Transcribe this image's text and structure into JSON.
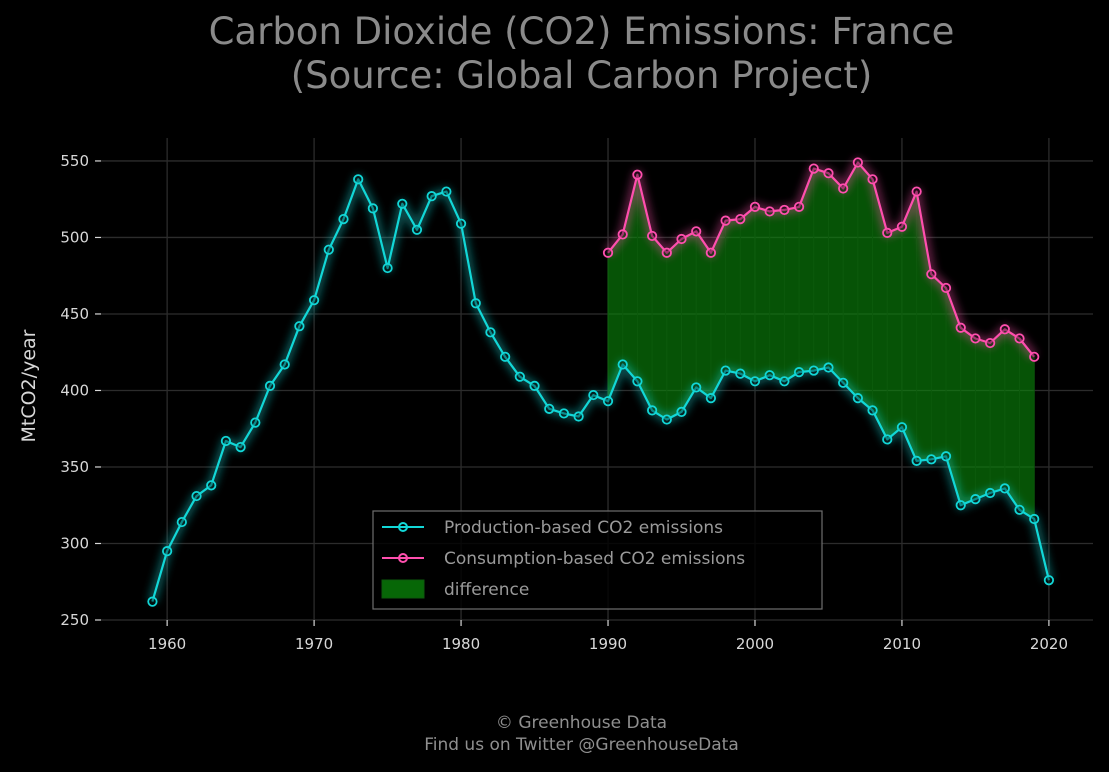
{
  "colors": {
    "background": "#000000",
    "production": "#12d7d7",
    "consumption": "#ff4fae",
    "difference": "#0a8a0a",
    "grid": "#2c2c2c",
    "text": "#d8d8d8",
    "title": "#8a8a8a"
  },
  "footer": {
    "line1": "© Greenhouse Data",
    "line2": "Find us on Twitter @GreenhouseData"
  },
  "chart_data": {
    "type": "line",
    "title": "Carbon Dioxide (CO2) Emissions: France",
    "subtitle": "(Source: Global Carbon Project)",
    "xlabel": "",
    "ylabel": "MtCO2/year",
    "xlim": [
      1955.5,
      2023
    ],
    "ylim": [
      250,
      565
    ],
    "xticks": [
      1960,
      1970,
      1980,
      1990,
      2000,
      2010,
      2020
    ],
    "yticks": [
      250,
      300,
      350,
      400,
      450,
      500,
      550
    ],
    "grid": true,
    "legend_position": "lower-center",
    "series": [
      {
        "name": "Production-based CO2 emissions",
        "color": "#12d7d7",
        "x": [
          1959,
          1960,
          1961,
          1962,
          1963,
          1964,
          1965,
          1966,
          1967,
          1968,
          1969,
          1970,
          1971,
          1972,
          1973,
          1974,
          1975,
          1976,
          1977,
          1978,
          1979,
          1980,
          1981,
          1982,
          1983,
          1984,
          1985,
          1986,
          1987,
          1988,
          1989,
          1990,
          1991,
          1992,
          1993,
          1994,
          1995,
          1996,
          1997,
          1998,
          1999,
          2000,
          2001,
          2002,
          2003,
          2004,
          2005,
          2006,
          2007,
          2008,
          2009,
          2010,
          2011,
          2012,
          2013,
          2014,
          2015,
          2016,
          2017,
          2018,
          2019,
          2020
        ],
        "values": [
          262,
          295,
          314,
          331,
          338,
          367,
          363,
          379,
          403,
          417,
          442,
          459,
          492,
          512,
          538,
          519,
          480,
          522,
          505,
          527,
          530,
          509,
          457,
          438,
          422,
          409,
          403,
          388,
          385,
          383,
          397,
          393,
          417,
          406,
          387,
          381,
          386,
          402,
          395,
          413,
          411,
          406,
          410,
          406,
          412,
          413,
          415,
          405,
          395,
          387,
          368,
          376,
          354,
          355,
          357,
          325,
          329,
          333,
          336,
          322,
          316,
          276
        ]
      },
      {
        "name": "Consumption-based CO2 emissions",
        "color": "#ff4fae",
        "x": [
          1990,
          1991,
          1992,
          1993,
          1994,
          1995,
          1996,
          1997,
          1998,
          1999,
          2000,
          2001,
          2002,
          2003,
          2004,
          2005,
          2006,
          2007,
          2008,
          2009,
          2010,
          2011,
          2012,
          2013,
          2014,
          2015,
          2016,
          2017,
          2018,
          2019
        ],
        "values": [
          490,
          502,
          541,
          501,
          490,
          499,
          504,
          490,
          511,
          512,
          520,
          517,
          518,
          520,
          545,
          542,
          532,
          549,
          538,
          503,
          507,
          530,
          476,
          467,
          441,
          434,
          431,
          440,
          434,
          422
        ]
      }
    ],
    "fill_between": {
      "name": "difference",
      "color": "#0a8a0a",
      "x_range": [
        1990,
        2019
      ],
      "between": [
        "Production-based CO2 emissions",
        "Consumption-based CO2 emissions"
      ]
    }
  }
}
